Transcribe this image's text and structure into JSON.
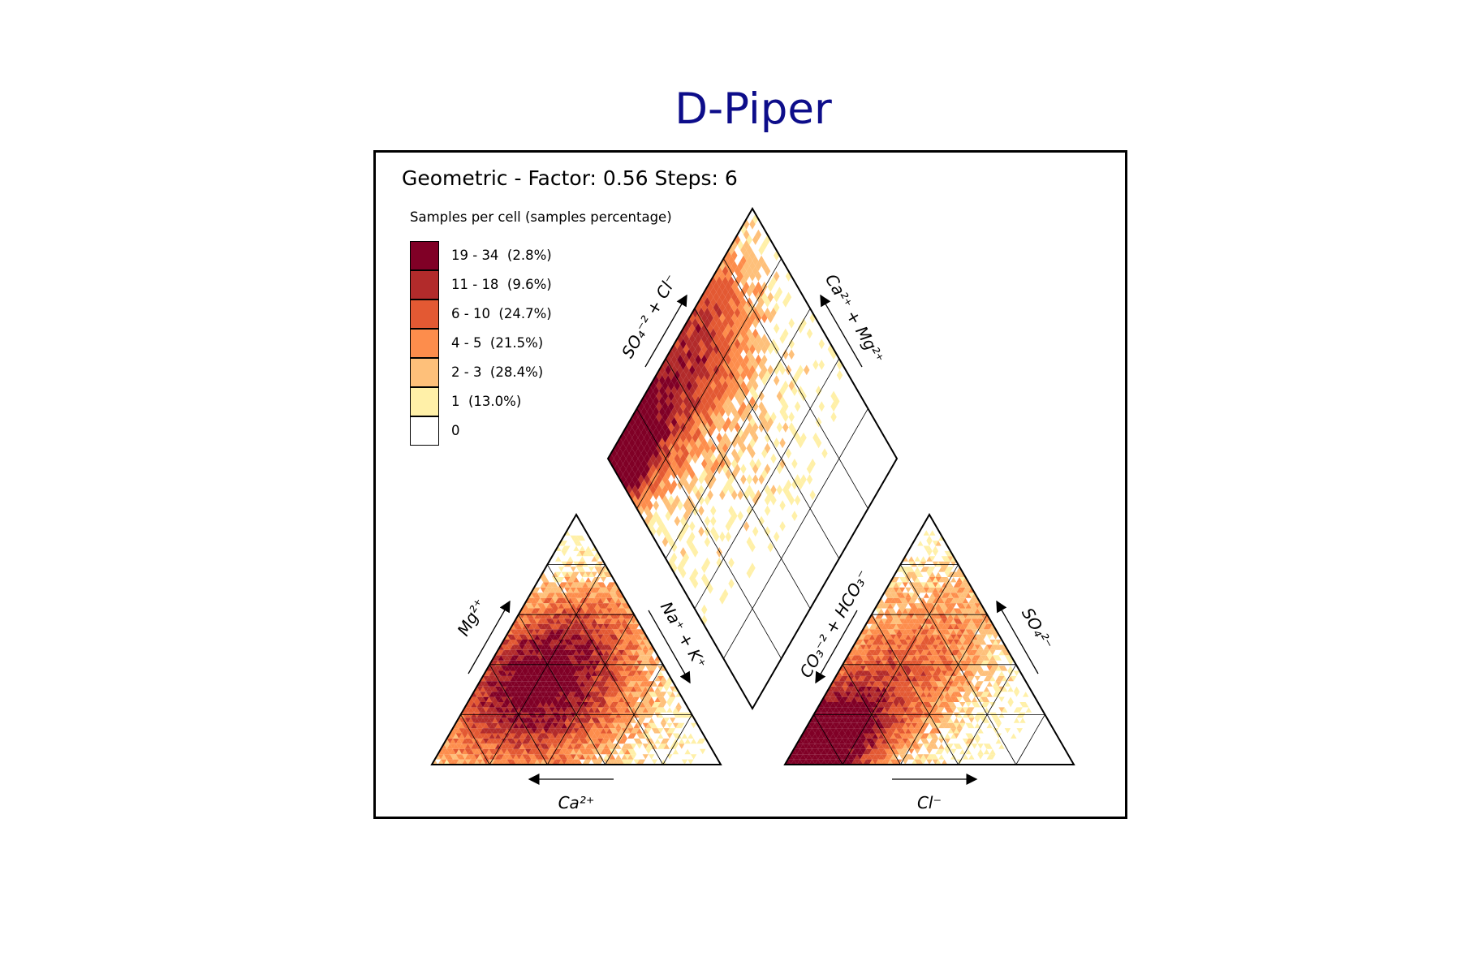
{
  "title": "D-Piper",
  "subtitle": "Geometric - Factor: 0.56 Steps: 6",
  "legend": {
    "title": "Samples per cell (samples percentage)",
    "items": [
      {
        "label": "19 - 34  (2.8%)",
        "color": "#800026"
      },
      {
        "label": "11 - 18  (9.6%)",
        "color": "#b22b2b"
      },
      {
        "label": "6 - 10  (24.7%)",
        "color": "#e35933"
      },
      {
        "label": "4 - 5  (21.5%)",
        "color": "#fd8d4c"
      },
      {
        "label": "2 - 3  (28.4%)",
        "color": "#fec07a"
      },
      {
        "label": "1  (13.0%)",
        "color": "#fff0a8"
      },
      {
        "label": "0",
        "color": "#ffffff"
      }
    ]
  },
  "chart_data": {
    "type": "heatmap",
    "subtype": "piper ternary density",
    "grid": true,
    "grid_divisions": 5,
    "panels": [
      {
        "name": "cation",
        "axes": {
          "bottom": "Ca²⁺",
          "left": "Mg²⁺",
          "right": "Na⁺ + K⁺"
        },
        "density_center": {
          "Ca": 55,
          "Mg": 30,
          "NaK": 15
        }
      },
      {
        "name": "anion",
        "axes": {
          "bottom": "Cl⁻",
          "left": "CO₃⁻² + HCO₃⁻",
          "right": "SO₄²⁻"
        },
        "density_center": {
          "Cl": 10,
          "SO4": 10,
          "HCO3": 80
        }
      },
      {
        "name": "diamond",
        "axes": {
          "upper_left": "SO₄⁻² + Cl⁻",
          "upper_right": "Ca²⁺ + Mg²⁺"
        },
        "density_center": {
          "SO4_Cl": 20,
          "Ca_Mg": 80
        }
      }
    ],
    "scale": {
      "min": 0,
      "max": 34
    }
  }
}
